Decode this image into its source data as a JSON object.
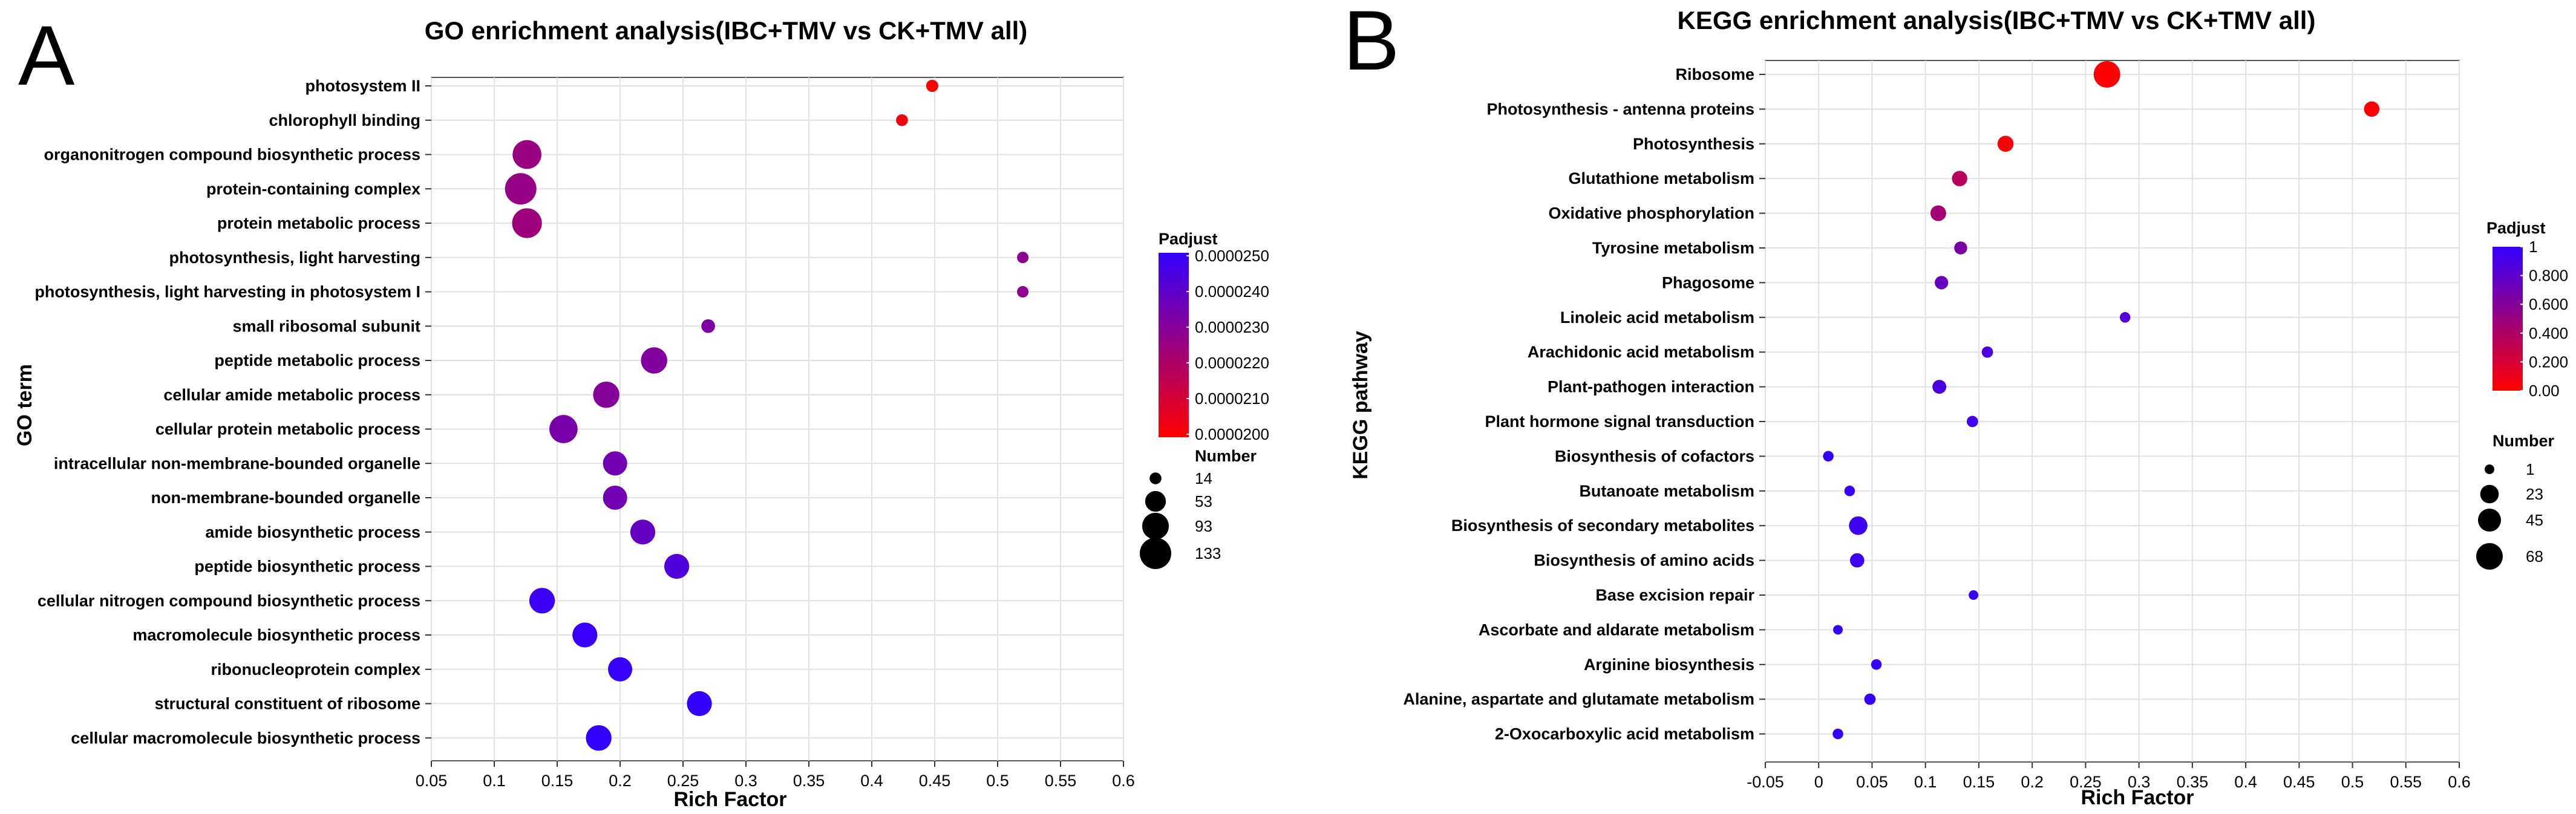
{
  "chart_data": [
    {
      "type": "scatter",
      "panel_label": "A",
      "title": "GO enrichment analysis(IBC+TMV vs CK+TMV all)",
      "xlabel": "Rich Factor",
      "ylabel": "GO term",
      "xlim": [
        0.05,
        0.6
      ],
      "x_ticks": [
        "0.05",
        "0.1",
        "0.15",
        "0.2",
        "0.25",
        "0.3",
        "0.35",
        "0.4",
        "0.45",
        "0.5",
        "0.55",
        "0.6"
      ],
      "x_tick_values": [
        0.05,
        0.1,
        0.15,
        0.2,
        0.25,
        0.3,
        0.35,
        0.4,
        0.45,
        0.5,
        0.55,
        0.6
      ],
      "grid": true,
      "categories": [
        "photosystem II",
        "chlorophyll binding",
        "organonitrogen compound biosynthetic process",
        "protein-containing complex",
        "protein metabolic process",
        "photosynthesis, light harvesting",
        "photosynthesis, light harvesting in photosystem I",
        "small ribosomal subunit",
        "peptide metabolic process",
        "cellular amide metabolic process",
        "cellular protein metabolic process",
        "intracellular non-membrane-bounded organelle",
        "non-membrane-bounded organelle",
        "amide biosynthetic process",
        "peptide biosynthetic process",
        "cellular nitrogen compound biosynthetic process",
        "macromolecule biosynthetic process",
        "ribonucleoprotein complex",
        "structural constituent of ribosome",
        "cellular macromolecule biosynthetic process"
      ],
      "points": [
        {
          "x": 0.448,
          "number": 15,
          "padjust": 2e-05
        },
        {
          "x": 0.424,
          "number": 14,
          "padjust": 2.03e-05
        },
        {
          "x": 0.126,
          "number": 110,
          "padjust": 2.25e-05
        },
        {
          "x": 0.121,
          "number": 133,
          "padjust": 2.26e-05
        },
        {
          "x": 0.126,
          "number": 118,
          "padjust": 2.24e-05
        },
        {
          "x": 0.52,
          "number": 13,
          "padjust": 2.28e-05
        },
        {
          "x": 0.52,
          "number": 13,
          "padjust": 2.28e-05
        },
        {
          "x": 0.27,
          "number": 20,
          "padjust": 2.32e-05
        },
        {
          "x": 0.227,
          "number": 90,
          "padjust": 2.31e-05
        },
        {
          "x": 0.189,
          "number": 90,
          "padjust": 2.3e-05
        },
        {
          "x": 0.155,
          "number": 105,
          "padjust": 2.33e-05
        },
        {
          "x": 0.196,
          "number": 75,
          "padjust": 2.35e-05
        },
        {
          "x": 0.196,
          "number": 75,
          "padjust": 2.35e-05
        },
        {
          "x": 0.218,
          "number": 80,
          "padjust": 2.38e-05
        },
        {
          "x": 0.245,
          "number": 80,
          "padjust": 2.43e-05
        },
        {
          "x": 0.138,
          "number": 85,
          "padjust": 2.48e-05
        },
        {
          "x": 0.172,
          "number": 80,
          "padjust": 2.49e-05
        },
        {
          "x": 0.2,
          "number": 75,
          "padjust": 2.49e-05
        },
        {
          "x": 0.263,
          "number": 80,
          "padjust": 2.5e-05
        },
        {
          "x": 0.183,
          "number": 85,
          "padjust": 2.5e-05
        }
      ],
      "color_legend": {
        "title": "Padjust",
        "min": 2e-05,
        "max": 2.5e-05,
        "low_color": "#ff0000",
        "high_color": "#3300ff",
        "labels": [
          "0.0000250",
          "0.0000240",
          "0.0000230",
          "0.0000220",
          "0.0000210",
          "0.0000200"
        ]
      },
      "size_legend": {
        "title": "Number",
        "values": [
          14,
          53,
          93,
          133
        ],
        "labels": [
          "14",
          "53",
          "93",
          "133"
        ]
      }
    },
    {
      "type": "scatter",
      "panel_label": "B",
      "title": "KEGG enrichment analysis(IBC+TMV vs CK+TMV all)",
      "xlabel": "Rich Factor",
      "ylabel": "KEGG pathway",
      "xlim": [
        -0.05,
        0.6
      ],
      "x_ticks": [
        "-0.05",
        "0",
        "0.05",
        "0.1",
        "0.15",
        "0.2",
        "0.25",
        "0.3",
        "0.35",
        "0.4",
        "0.45",
        "0.5",
        "0.55",
        "0.6"
      ],
      "x_tick_values": [
        -0.05,
        0,
        0.05,
        0.1,
        0.15,
        0.2,
        0.25,
        0.3,
        0.35,
        0.4,
        0.45,
        0.5,
        0.55,
        0.6
      ],
      "grid": true,
      "categories": [
        "Ribosome",
        "Photosynthesis - antenna proteins",
        "Photosynthesis",
        "Glutathione metabolism",
        "Oxidative phosphorylation",
        "Tyrosine metabolism",
        "Phagosome",
        "Linoleic acid metabolism",
        "Arachidonic acid metabolism",
        "Plant-pathogen interaction",
        "Plant hormone signal transduction",
        "Biosynthesis of cofactors",
        "Butanoate metabolism",
        "Biosynthesis of secondary metabolites",
        "Biosynthesis of amino acids",
        "Base excision repair",
        "Ascorbate and aldarate metabolism",
        "Arginine biosynthesis",
        "Alanine, aspartate and glutamate metabolism",
        "2-Oxocarboxylic acid metabolism"
      ],
      "points": [
        {
          "x": 0.27,
          "number": 68,
          "padjust": 0.0
        },
        {
          "x": 0.518,
          "number": 12,
          "padjust": 0.0
        },
        {
          "x": 0.175,
          "number": 14,
          "padjust": 0.02
        },
        {
          "x": 0.132,
          "number": 12,
          "padjust": 0.35
        },
        {
          "x": 0.112,
          "number": 13,
          "padjust": 0.45
        },
        {
          "x": 0.133,
          "number": 6,
          "padjust": 0.65
        },
        {
          "x": 0.115,
          "number": 7,
          "padjust": 0.75
        },
        {
          "x": 0.287,
          "number": 2,
          "padjust": 0.85
        },
        {
          "x": 0.158,
          "number": 3,
          "padjust": 0.88
        },
        {
          "x": 0.113,
          "number": 8,
          "padjust": 0.88
        },
        {
          "x": 0.144,
          "number": 3,
          "padjust": 0.93
        },
        {
          "x": 0.009,
          "number": 2,
          "padjust": 1.0
        },
        {
          "x": 0.029,
          "number": 2,
          "padjust": 0.97
        },
        {
          "x": 0.037,
          "number": 23,
          "padjust": 0.95
        },
        {
          "x": 0.036,
          "number": 9,
          "padjust": 0.95
        },
        {
          "x": 0.145,
          "number": 1,
          "padjust": 0.98
        },
        {
          "x": 0.018,
          "number": 1,
          "padjust": 1.0
        },
        {
          "x": 0.054,
          "number": 2,
          "padjust": 0.99
        },
        {
          "x": 0.048,
          "number": 3,
          "padjust": 1.0
        },
        {
          "x": 0.018,
          "number": 2,
          "padjust": 1.0
        }
      ],
      "color_legend": {
        "title": "Padjust",
        "min": 0.0,
        "max": 1.0,
        "low_color": "#ff0000",
        "high_color": "#3300ff",
        "labels": [
          "1",
          "0.800",
          "0.600",
          "0.400",
          "0.200",
          "0.00"
        ]
      },
      "size_legend": {
        "title": "Number",
        "values": [
          1,
          23,
          45,
          68
        ],
        "labels": [
          "1",
          "23",
          "45",
          "68"
        ]
      }
    }
  ]
}
